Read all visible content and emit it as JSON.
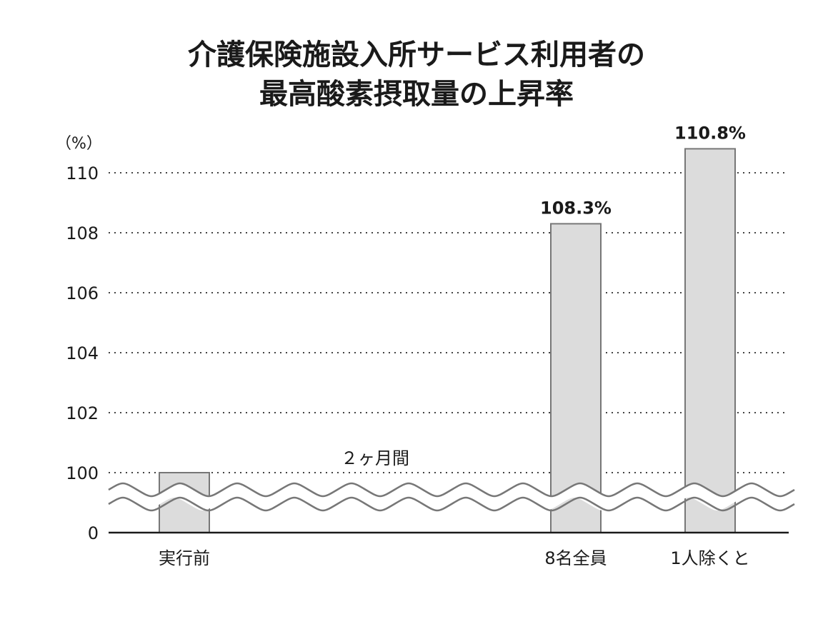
{
  "chart_data": {
    "type": "bar",
    "title": [
      "介護保険施設入所サービス利用者の",
      "最高酸素摂取量の上昇率"
    ],
    "ylabel": "（%）",
    "y_ticks": [
      "0",
      "100",
      "102",
      "104",
      "106",
      "108",
      "110"
    ],
    "ylim": [
      100,
      111
    ],
    "axis_break": "between 0 and 100",
    "grid": "dotted horizontal",
    "categories": [
      "実行前",
      "8名全員",
      "1人除くと"
    ],
    "values": [
      100,
      108.3,
      110.8
    ],
    "data_labels": [
      "",
      "108.3%",
      "110.8%"
    ],
    "annotation": "２ヶ月間",
    "colors": {
      "bar_fill": "#dcdcdc",
      "bar_stroke": "#777777",
      "text": "#1a1a1a"
    }
  }
}
